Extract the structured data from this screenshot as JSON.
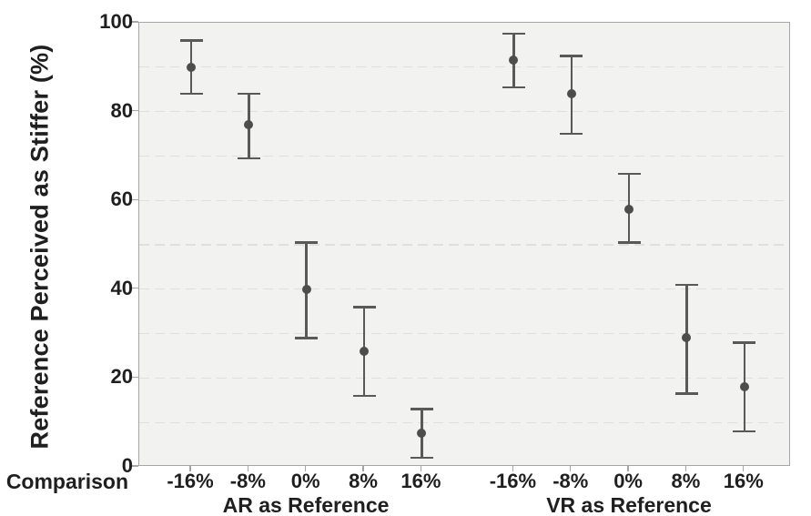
{
  "chart_data": {
    "type": "scatter",
    "subtype": "point-estimates-with-error-bars",
    "title": "",
    "ylabel": "Reference Perceived as Stiffer (%)",
    "xlabel": "Comparison",
    "ylim": [
      0,
      100
    ],
    "yticks": [
      0,
      20,
      40,
      60,
      80,
      100
    ],
    "grid": "horizontal, dashed, every 10 units",
    "legend_position": "none",
    "categories": [
      "-16%",
      "-8%",
      "0%",
      "8%",
      "16%"
    ],
    "series": [
      {
        "name": "AR as Reference",
        "means": [
          90,
          77,
          40,
          26,
          7.5
        ],
        "ci_low": [
          84,
          69.5,
          29,
          16,
          2
        ],
        "ci_high": [
          96,
          84,
          50.5,
          36,
          13
        ]
      },
      {
        "name": "VR as Reference",
        "means": [
          91.5,
          84,
          58,
          29,
          18
        ],
        "ci_low": [
          85.5,
          75,
          50.5,
          16.5,
          8
        ],
        "ci_high": [
          97.5,
          92.5,
          66,
          41,
          28
        ]
      }
    ],
    "colors": {
      "plot_background": "#f2f2f1",
      "gridline": "#dfdfdf",
      "axis_line": "#a6a6a6",
      "error_bar": "#595959",
      "point": "#4d4d4d",
      "text": "#1f1f1f",
      "page_background": "#ffffff"
    }
  }
}
